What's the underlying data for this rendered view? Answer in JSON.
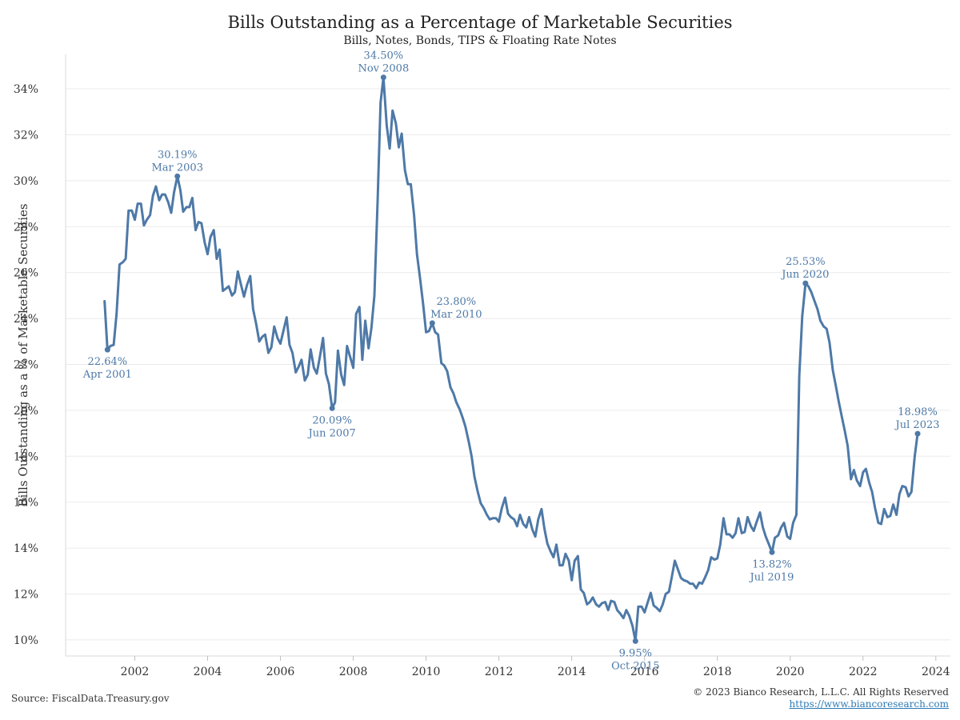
{
  "header": {
    "title": "Bills Outstanding as a Percentage of Marketable Securities",
    "subtitle": "Bills, Notes, Bonds, TIPS & Floating Rate Notes"
  },
  "footer": {
    "source": "Source: FiscalData.Treasury.gov",
    "copyright": "© 2023 Bianco Research, L.L.C. All Rights Reserved",
    "url": "https://www.biancoresearch.com"
  },
  "colors": {
    "line": "#4e79a7",
    "grid": "#ebebeb"
  },
  "chart_data": {
    "type": "line",
    "title": "Bills Outstanding as a Percentage of Marketable Securities",
    "subtitle": "Bills, Notes, Bonds, TIPS & Floating Rate Notes",
    "xlabel": "",
    "ylabel": "Bills Outstanding as a % of Marketable Securities",
    "xlim": [
      2000.1,
      2024.4
    ],
    "ylim": [
      9.3,
      35.5
    ],
    "yticks": [
      10,
      12,
      14,
      16,
      18,
      20,
      22,
      24,
      26,
      28,
      30,
      32,
      34
    ],
    "ytick_labels": [
      "10%",
      "12%",
      "14%",
      "16%",
      "18%",
      "20%",
      "22%",
      "24%",
      "26%",
      "28%",
      "30%",
      "32%",
      "34%"
    ],
    "xticks": [
      2002,
      2004,
      2006,
      2008,
      2010,
      2012,
      2014,
      2016,
      2018,
      2020,
      2022,
      2024
    ],
    "xtick_labels": [
      "2002",
      "2004",
      "2006",
      "2008",
      "2010",
      "2012",
      "2014",
      "2016",
      "2018",
      "2020",
      "2022",
      "2024"
    ],
    "grid": "horizontal",
    "series": [
      {
        "points": [
          [
            2001.17,
            24.75
          ],
          [
            2001.25,
            22.64
          ],
          [
            2001.33,
            22.8
          ],
          [
            2001.42,
            22.85
          ],
          [
            2001.5,
            24.2
          ],
          [
            2001.58,
            26.35
          ],
          [
            2001.67,
            26.45
          ],
          [
            2001.75,
            26.6
          ],
          [
            2001.83,
            28.7
          ],
          [
            2001.92,
            28.7
          ],
          [
            2002.0,
            28.3
          ],
          [
            2002.08,
            29.0
          ],
          [
            2002.17,
            29.0
          ],
          [
            2002.25,
            28.05
          ],
          [
            2002.33,
            28.3
          ],
          [
            2002.42,
            28.5
          ],
          [
            2002.5,
            29.35
          ],
          [
            2002.58,
            29.75
          ],
          [
            2002.67,
            29.15
          ],
          [
            2002.75,
            29.4
          ],
          [
            2002.83,
            29.4
          ],
          [
            2002.92,
            29.05
          ],
          [
            2003.0,
            28.6
          ],
          [
            2003.08,
            29.5
          ],
          [
            2003.17,
            30.19
          ],
          [
            2003.25,
            29.6
          ],
          [
            2003.33,
            28.65
          ],
          [
            2003.42,
            28.85
          ],
          [
            2003.5,
            28.85
          ],
          [
            2003.58,
            29.25
          ],
          [
            2003.67,
            27.85
          ],
          [
            2003.75,
            28.2
          ],
          [
            2003.83,
            28.15
          ],
          [
            2003.92,
            27.3
          ],
          [
            2004.0,
            26.8
          ],
          [
            2004.08,
            27.55
          ],
          [
            2004.17,
            27.85
          ],
          [
            2004.25,
            26.6
          ],
          [
            2004.33,
            27.0
          ],
          [
            2004.42,
            25.2
          ],
          [
            2004.5,
            25.3
          ],
          [
            2004.58,
            25.4
          ],
          [
            2004.67,
            25.0
          ],
          [
            2004.75,
            25.15
          ],
          [
            2004.83,
            26.05
          ],
          [
            2004.92,
            25.45
          ],
          [
            2005.0,
            24.95
          ],
          [
            2005.08,
            25.45
          ],
          [
            2005.17,
            25.85
          ],
          [
            2005.25,
            24.4
          ],
          [
            2005.33,
            23.8
          ],
          [
            2005.42,
            23.0
          ],
          [
            2005.5,
            23.2
          ],
          [
            2005.58,
            23.3
          ],
          [
            2005.67,
            22.5
          ],
          [
            2005.75,
            22.75
          ],
          [
            2005.83,
            23.65
          ],
          [
            2005.92,
            23.15
          ],
          [
            2006.0,
            22.9
          ],
          [
            2006.08,
            23.45
          ],
          [
            2006.17,
            24.05
          ],
          [
            2006.25,
            22.85
          ],
          [
            2006.33,
            22.5
          ],
          [
            2006.42,
            21.65
          ],
          [
            2006.5,
            21.9
          ],
          [
            2006.58,
            22.2
          ],
          [
            2006.67,
            21.3
          ],
          [
            2006.75,
            21.55
          ],
          [
            2006.83,
            22.65
          ],
          [
            2006.92,
            21.85
          ],
          [
            2007.0,
            21.6
          ],
          [
            2007.08,
            22.3
          ],
          [
            2007.17,
            23.15
          ],
          [
            2007.25,
            21.6
          ],
          [
            2007.33,
            21.15
          ],
          [
            2007.42,
            20.09
          ],
          [
            2007.5,
            20.35
          ],
          [
            2007.58,
            22.6
          ],
          [
            2007.67,
            21.55
          ],
          [
            2007.75,
            21.1
          ],
          [
            2007.83,
            22.8
          ],
          [
            2007.92,
            22.3
          ],
          [
            2008.0,
            21.85
          ],
          [
            2008.08,
            24.2
          ],
          [
            2008.17,
            24.5
          ],
          [
            2008.25,
            22.2
          ],
          [
            2008.33,
            23.9
          ],
          [
            2008.42,
            22.7
          ],
          [
            2008.5,
            23.6
          ],
          [
            2008.58,
            25.0
          ],
          [
            2008.67,
            29.2
          ],
          [
            2008.75,
            33.4
          ],
          [
            2008.83,
            34.5
          ],
          [
            2008.92,
            32.4
          ],
          [
            2009.0,
            31.4
          ],
          [
            2009.08,
            33.05
          ],
          [
            2009.17,
            32.5
          ],
          [
            2009.25,
            31.45
          ],
          [
            2009.33,
            32.05
          ],
          [
            2009.42,
            30.45
          ],
          [
            2009.5,
            29.85
          ],
          [
            2009.58,
            29.85
          ],
          [
            2009.67,
            28.5
          ],
          [
            2009.75,
            26.8
          ],
          [
            2009.83,
            25.8
          ],
          [
            2009.92,
            24.6
          ],
          [
            2010.0,
            23.4
          ],
          [
            2010.08,
            23.45
          ],
          [
            2010.17,
            23.8
          ],
          [
            2010.25,
            23.4
          ],
          [
            2010.33,
            23.3
          ],
          [
            2010.42,
            22.05
          ],
          [
            2010.5,
            21.95
          ],
          [
            2010.58,
            21.7
          ],
          [
            2010.67,
            21.0
          ],
          [
            2010.75,
            20.75
          ],
          [
            2010.83,
            20.35
          ],
          [
            2010.92,
            20.05
          ],
          [
            2011.0,
            19.7
          ],
          [
            2011.08,
            19.3
          ],
          [
            2011.17,
            18.65
          ],
          [
            2011.25,
            18.0
          ],
          [
            2011.33,
            17.1
          ],
          [
            2011.42,
            16.45
          ],
          [
            2011.5,
            15.95
          ],
          [
            2011.58,
            15.75
          ],
          [
            2011.67,
            15.45
          ],
          [
            2011.75,
            15.25
          ],
          [
            2011.83,
            15.3
          ],
          [
            2011.92,
            15.3
          ],
          [
            2012.0,
            15.15
          ],
          [
            2012.08,
            15.75
          ],
          [
            2012.17,
            16.2
          ],
          [
            2012.25,
            15.5
          ],
          [
            2012.33,
            15.35
          ],
          [
            2012.42,
            15.25
          ],
          [
            2012.5,
            14.95
          ],
          [
            2012.58,
            15.45
          ],
          [
            2012.67,
            15.05
          ],
          [
            2012.75,
            14.9
          ],
          [
            2012.83,
            15.35
          ],
          [
            2012.92,
            14.8
          ],
          [
            2013.0,
            14.5
          ],
          [
            2013.08,
            15.25
          ],
          [
            2013.17,
            15.7
          ],
          [
            2013.25,
            14.85
          ],
          [
            2013.33,
            14.2
          ],
          [
            2013.42,
            13.85
          ],
          [
            2013.5,
            13.6
          ],
          [
            2013.58,
            14.15
          ],
          [
            2013.67,
            13.25
          ],
          [
            2013.75,
            13.25
          ],
          [
            2013.83,
            13.75
          ],
          [
            2013.92,
            13.45
          ],
          [
            2014.0,
            12.6
          ],
          [
            2014.08,
            13.45
          ],
          [
            2014.17,
            13.65
          ],
          [
            2014.25,
            12.2
          ],
          [
            2014.33,
            12.05
          ],
          [
            2014.42,
            11.55
          ],
          [
            2014.5,
            11.65
          ],
          [
            2014.58,
            11.85
          ],
          [
            2014.67,
            11.55
          ],
          [
            2014.75,
            11.45
          ],
          [
            2014.83,
            11.6
          ],
          [
            2014.92,
            11.65
          ],
          [
            2015.0,
            11.3
          ],
          [
            2015.08,
            11.7
          ],
          [
            2015.17,
            11.65
          ],
          [
            2015.25,
            11.3
          ],
          [
            2015.33,
            11.15
          ],
          [
            2015.42,
            10.95
          ],
          [
            2015.5,
            11.3
          ],
          [
            2015.58,
            11.05
          ],
          [
            2015.67,
            10.6
          ],
          [
            2015.75,
            9.95
          ],
          [
            2015.83,
            11.45
          ],
          [
            2015.92,
            11.45
          ],
          [
            2016.0,
            11.2
          ],
          [
            2016.08,
            11.6
          ],
          [
            2016.17,
            12.05
          ],
          [
            2016.25,
            11.5
          ],
          [
            2016.33,
            11.4
          ],
          [
            2016.42,
            11.25
          ],
          [
            2016.5,
            11.55
          ],
          [
            2016.58,
            12.0
          ],
          [
            2016.67,
            12.1
          ],
          [
            2016.75,
            12.75
          ],
          [
            2016.83,
            13.45
          ],
          [
            2016.92,
            13.05
          ],
          [
            2017.0,
            12.7
          ],
          [
            2017.08,
            12.6
          ],
          [
            2017.17,
            12.55
          ],
          [
            2017.25,
            12.45
          ],
          [
            2017.33,
            12.45
          ],
          [
            2017.42,
            12.25
          ],
          [
            2017.5,
            12.5
          ],
          [
            2017.58,
            12.45
          ],
          [
            2017.67,
            12.75
          ],
          [
            2017.75,
            13.05
          ],
          [
            2017.83,
            13.6
          ],
          [
            2017.92,
            13.5
          ],
          [
            2018.0,
            13.55
          ],
          [
            2018.08,
            14.15
          ],
          [
            2018.17,
            15.3
          ],
          [
            2018.25,
            14.6
          ],
          [
            2018.33,
            14.6
          ],
          [
            2018.42,
            14.45
          ],
          [
            2018.5,
            14.65
          ],
          [
            2018.58,
            15.3
          ],
          [
            2018.67,
            14.65
          ],
          [
            2018.75,
            14.7
          ],
          [
            2018.83,
            15.35
          ],
          [
            2018.92,
            14.95
          ],
          [
            2019.0,
            14.75
          ],
          [
            2019.08,
            15.15
          ],
          [
            2019.17,
            15.55
          ],
          [
            2019.25,
            14.9
          ],
          [
            2019.33,
            14.5
          ],
          [
            2019.42,
            14.15
          ],
          [
            2019.5,
            13.82
          ],
          [
            2019.58,
            14.45
          ],
          [
            2019.67,
            14.55
          ],
          [
            2019.75,
            14.9
          ],
          [
            2019.83,
            15.1
          ],
          [
            2019.92,
            14.5
          ],
          [
            2020.0,
            14.4
          ],
          [
            2020.08,
            15.1
          ],
          [
            2020.17,
            15.45
          ],
          [
            2020.25,
            21.5
          ],
          [
            2020.33,
            24.1
          ],
          [
            2020.42,
            25.53
          ],
          [
            2020.5,
            25.4
          ],
          [
            2020.58,
            25.15
          ],
          [
            2020.67,
            24.75
          ],
          [
            2020.75,
            24.4
          ],
          [
            2020.83,
            23.9
          ],
          [
            2020.92,
            23.65
          ],
          [
            2021.0,
            23.55
          ],
          [
            2021.08,
            22.95
          ],
          [
            2021.17,
            21.75
          ],
          [
            2021.25,
            21.1
          ],
          [
            2021.33,
            20.4
          ],
          [
            2021.42,
            19.7
          ],
          [
            2021.5,
            19.1
          ],
          [
            2021.58,
            18.45
          ],
          [
            2021.67,
            17.0
          ],
          [
            2021.75,
            17.4
          ],
          [
            2021.83,
            16.95
          ],
          [
            2021.92,
            16.7
          ],
          [
            2022.0,
            17.3
          ],
          [
            2022.08,
            17.45
          ],
          [
            2022.17,
            16.85
          ],
          [
            2022.25,
            16.45
          ],
          [
            2022.33,
            15.75
          ],
          [
            2022.42,
            15.1
          ],
          [
            2022.5,
            15.05
          ],
          [
            2022.58,
            15.7
          ],
          [
            2022.67,
            15.35
          ],
          [
            2022.75,
            15.4
          ],
          [
            2022.83,
            15.9
          ],
          [
            2022.92,
            15.45
          ],
          [
            2023.0,
            16.35
          ],
          [
            2023.08,
            16.7
          ],
          [
            2023.17,
            16.65
          ],
          [
            2023.25,
            16.25
          ],
          [
            2023.33,
            16.45
          ],
          [
            2023.42,
            18.0
          ],
          [
            2023.5,
            18.98
          ]
        ]
      }
    ],
    "annotations": [
      {
        "x": 2001.25,
        "y": 22.64,
        "value": "22.64%",
        "date": "Apr 2001",
        "pos": "below"
      },
      {
        "x": 2003.17,
        "y": 30.19,
        "value": "30.19%",
        "date": "Mar 2003",
        "pos": "above"
      },
      {
        "x": 2007.42,
        "y": 20.09,
        "value": "20.09%",
        "date": "Jun 2007",
        "pos": "below"
      },
      {
        "x": 2008.83,
        "y": 34.5,
        "value": "34.50%",
        "date": "Nov 2008",
        "pos": "above"
      },
      {
        "x": 2010.17,
        "y": 23.8,
        "value": "23.80%",
        "date": "Mar 2010",
        "pos": "above-right"
      },
      {
        "x": 2015.75,
        "y": 9.95,
        "value": "9.95%",
        "date": "Oct 2015",
        "pos": "below"
      },
      {
        "x": 2019.5,
        "y": 13.82,
        "value": "13.82%",
        "date": "Jul 2019",
        "pos": "below"
      },
      {
        "x": 2020.42,
        "y": 25.53,
        "value": "25.53%",
        "date": "Jun 2020",
        "pos": "above"
      },
      {
        "x": 2023.5,
        "y": 18.98,
        "value": "18.98%",
        "date": "Jul 2023",
        "pos": "above"
      }
    ]
  }
}
